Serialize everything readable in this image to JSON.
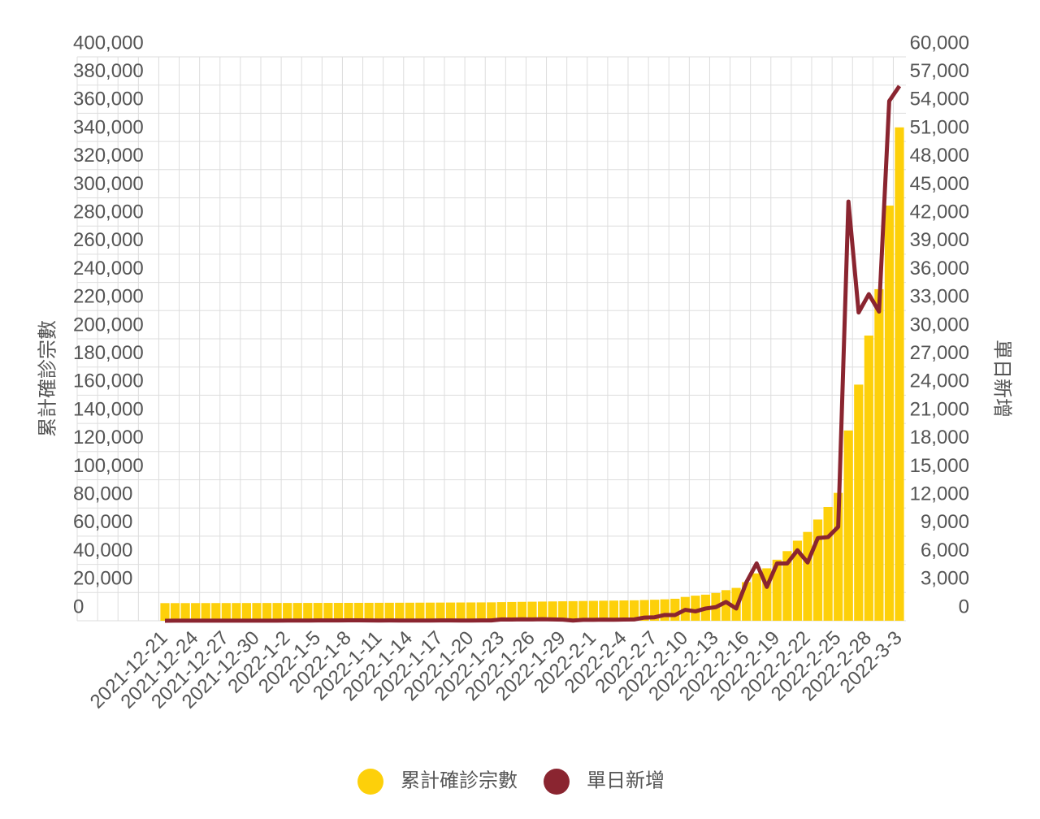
{
  "chart_data": {
    "type": "bar",
    "categories": [
      "2021-12-21",
      null,
      null,
      "2021-12-24",
      null,
      null,
      "2021-12-27",
      null,
      null,
      "2021-12-30",
      null,
      null,
      "2022-1-2",
      null,
      null,
      "2022-1-5",
      null,
      null,
      "2022-1-8",
      null,
      null,
      "2022-1-11",
      null,
      null,
      "2022-1-14",
      null,
      null,
      "2022-1-17",
      null,
      null,
      "2022-1-20",
      null,
      null,
      "2022-1-23",
      null,
      null,
      "2022-1-26",
      null,
      null,
      "2022-1-29",
      null,
      null,
      "2022-2-1",
      null,
      null,
      "2022-2-4",
      null,
      null,
      "2022-2-7",
      null,
      null,
      "2022-2-10",
      null,
      null,
      "2022-2-13",
      null,
      null,
      "2022-2-16",
      null,
      null,
      "2022-2-19",
      null,
      null,
      "2022-2-22",
      null,
      null,
      "2022-2-25",
      null,
      null,
      "2022-2-28",
      null,
      null,
      "2022-3-3"
    ],
    "series": [
      {
        "name": "累計確診宗數",
        "type": "bar",
        "color": "#fdd00a",
        "values": [
          12500,
          12510,
          12520,
          12530,
          12540,
          12550,
          12560,
          12570,
          12580,
          12590,
          12600,
          12610,
          12620,
          12630,
          12640,
          12650,
          12660,
          12670,
          12680,
          12700,
          12720,
          12740,
          12760,
          12780,
          12800,
          12830,
          12860,
          12890,
          12920,
          12950,
          12980,
          13010,
          13050,
          13200,
          13300,
          13400,
          13500,
          13600,
          13700,
          13800,
          13900,
          14000,
          14100,
          14200,
          14300,
          14400,
          14500,
          14700,
          14900,
          15200,
          15600,
          16900,
          17800,
          18500,
          19700,
          21700,
          23300,
          27400,
          33600,
          37200,
          43300,
          49400,
          56800,
          63000,
          71800,
          80700,
          90700,
          135000,
          167500,
          202300,
          235200,
          294500,
          350000
        ]
      },
      {
        "name": "單日新增",
        "type": "line",
        "axis": "y2",
        "color": "#8a2530",
        "values": [
          5,
          10,
          8,
          12,
          6,
          9,
          14,
          7,
          11,
          10,
          13,
          15,
          20,
          18,
          25,
          30,
          28,
          35,
          40,
          38,
          30,
          25,
          28,
          22,
          20,
          18,
          25,
          30,
          28,
          26,
          24,
          30,
          35,
          140,
          130,
          150,
          140,
          160,
          140,
          120,
          20,
          100,
          100,
          120,
          110,
          130,
          140,
          340,
          370,
          620,
          610,
          1160,
          1000,
          1300,
          1450,
          2000,
          1300,
          4100,
          6100,
          3600,
          6100,
          6100,
          7500,
          6200,
          8800,
          8900,
          10000,
          44600,
          32800,
          34750,
          32900,
          55300,
          56900
        ]
      }
    ],
    "y_label": "累計確診宗數",
    "y2_label": "單日新增",
    "ylim": [
      0,
      400000
    ],
    "yticks": [
      0,
      {
        "value": 20000,
        "label": "20,000"
      },
      {
        "value": 40000,
        "label": "40,000"
      },
      {
        "value": 60000,
        "label": "60,000"
      },
      {
        "value": 80000,
        "label": "80,000"
      },
      {
        "value": 100000,
        "label": "100,000"
      },
      {
        "value": 120000,
        "label": "120,000"
      },
      {
        "value": 140000,
        "label": "140,000"
      },
      {
        "value": 160000,
        "label": "160,000"
      },
      {
        "value": 180000,
        "label": "180,000"
      },
      {
        "value": 200000,
        "label": "200,000"
      },
      {
        "value": 220000,
        "label": "220,000"
      },
      {
        "value": 240000,
        "label": "240,000"
      },
      {
        "value": 260000,
        "label": "260,000"
      },
      {
        "value": 280000,
        "label": "280,000"
      },
      {
        "value": 300000,
        "label": "300,000"
      },
      {
        "value": 320000,
        "label": "320,000"
      },
      {
        "value": 340000,
        "label": "340,000"
      },
      {
        "value": 360000,
        "label": "360,000"
      },
      {
        "value": 380000,
        "label": "380,000"
      },
      {
        "value": 400000,
        "label": "400,000"
      }
    ],
    "y2lim": [
      0,
      60000
    ],
    "y2ticks": [
      0,
      {
        "value": 3000,
        "label": "3,000"
      },
      {
        "value": 6000,
        "label": "6,000"
      },
      {
        "value": 9000,
        "label": "9,000"
      },
      {
        "value": 12000,
        "label": "12,000"
      },
      {
        "value": 15000,
        "label": "15,000"
      },
      {
        "value": 18000,
        "label": "18,000"
      },
      {
        "value": 21000,
        "label": "21,000"
      },
      {
        "value": 24000,
        "label": "24,000"
      },
      {
        "value": 27000,
        "label": "27,000"
      },
      {
        "value": 30000,
        "label": "30,000"
      },
      {
        "value": 33000,
        "label": "33,000"
      },
      {
        "value": 36000,
        "label": "36,000"
      },
      {
        "value": 39000,
        "label": "39,000"
      },
      {
        "value": 42000,
        "label": "42,000"
      },
      {
        "value": 45000,
        "label": "45,000"
      },
      {
        "value": 48000,
        "label": "48,000"
      },
      {
        "value": 51000,
        "label": "51,000"
      },
      {
        "value": 54000,
        "label": "54,000"
      },
      {
        "value": 57000,
        "label": "57,000"
      },
      {
        "value": 60000,
        "label": "60,000"
      }
    ],
    "grid": true,
    "legend": "bottom"
  }
}
